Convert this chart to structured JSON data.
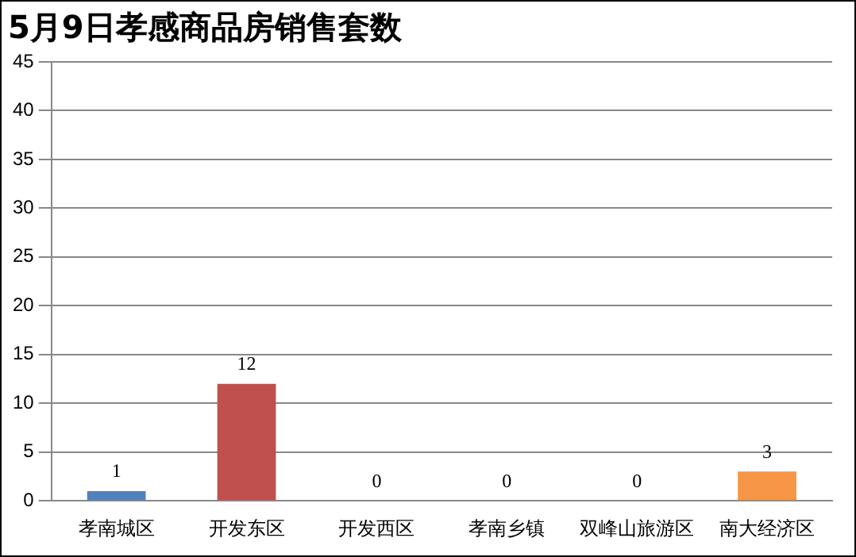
{
  "chart_data": {
    "type": "bar",
    "title": "5月9日孝感商品房销售套数",
    "categories": [
      "孝南城区",
      "开发东区",
      "开发西区",
      "孝南乡镇",
      "双峰山旅游区",
      "南大经济区"
    ],
    "values": [
      1,
      12,
      0,
      0,
      0,
      3
    ],
    "colors": [
      "#4f81bd",
      "#c0504d",
      "#9bbb59",
      "#8064a2",
      "#4bacc6",
      "#f79646"
    ],
    "ylim": [
      0,
      45
    ],
    "yticks": [
      0,
      5,
      10,
      15,
      20,
      25,
      30,
      35,
      40,
      45
    ],
    "grid": "y",
    "data_labels": true
  }
}
